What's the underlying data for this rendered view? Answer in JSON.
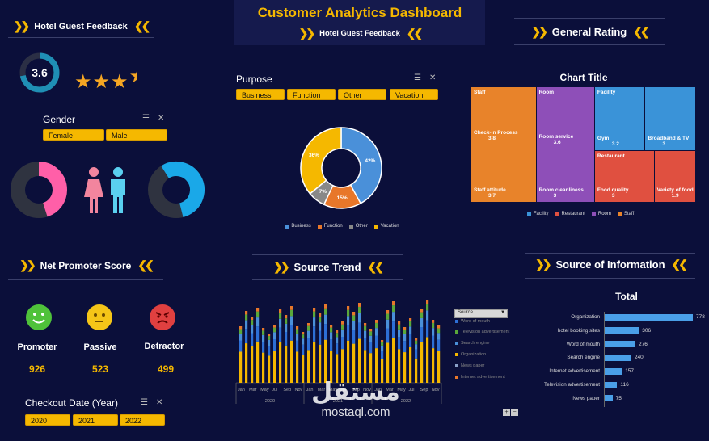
{
  "header": {
    "title": "Customer Analytics Dashboard",
    "subtitle": "Hotel Guest Feedback"
  },
  "left_panel": {
    "title": "Hotel Guest Feedback",
    "rating_value": "3.6",
    "rating_fraction": 0.72,
    "stars": 3.6,
    "gender": {
      "label": "Gender",
      "options": [
        "Female",
        "Male"
      ],
      "female_share": 0.45,
      "male_share": 0.55
    }
  },
  "purpose": {
    "label": "Purpose",
    "options": [
      "Business",
      "Function",
      "Other",
      "Vacation"
    ]
  },
  "general_rating": {
    "title": "General Rating"
  },
  "nps": {
    "title": "Net Promoter Score",
    "items": [
      {
        "label": "Promoter",
        "value": "926"
      },
      {
        "label": "Passive",
        "value": "523"
      },
      {
        "label": "Detractor",
        "value": "499"
      }
    ]
  },
  "checkout": {
    "label": "Checkout Date (Year)",
    "options": [
      "2020",
      "2021",
      "2022"
    ]
  },
  "source_trend": {
    "title": "Source Trend",
    "slicer_title": "Source",
    "legend": [
      "Word of mouth",
      "Television advertisement",
      "Search engine",
      "Organization",
      "News paper",
      "Internet advertisement"
    ],
    "month_labels": [
      "Jan",
      "Mar",
      "May",
      "Jul",
      "Sep",
      "Nov",
      "Jan",
      "Mar",
      "May",
      "Jul",
      "Sep",
      "Nov",
      "Jan",
      "Mar",
      "May",
      "Jul",
      "Sep",
      "Nov"
    ],
    "year_labels": [
      "2020",
      "2021",
      "2022"
    ]
  },
  "source_info": {
    "title": "Source of Information"
  },
  "colors": {
    "accent": "#f5b800",
    "background": "#0b0f3a",
    "business": "#4a90d9",
    "function": "#e8772a",
    "other": "#888888",
    "vacation": "#f5b800",
    "female": "#ff5fa8",
    "male": "#1aa8e8"
  },
  "watermark": "mostaql.com",
  "chart_data": [
    {
      "type": "pie",
      "name": "purpose",
      "categories": [
        "Business",
        "Function",
        "Other",
        "Vacation"
      ],
      "values": [
        42,
        15,
        7,
        36
      ],
      "labels": [
        "42%",
        "15%",
        "7%",
        "36%"
      ],
      "legend_placement": "bottom"
    },
    {
      "type": "heatmap",
      "subtype": "treemap",
      "title": "Chart Title",
      "items": [
        {
          "group": "Staff",
          "name": "Check-in Process",
          "value": 3.8,
          "label": "3.8"
        },
        {
          "group": "Staff",
          "name": "Staff attitude",
          "value": 3.7,
          "label": "3.7"
        },
        {
          "group": "Room",
          "name": "Room service",
          "value": 3.6,
          "label": "3.6"
        },
        {
          "group": "Room",
          "name": "Room cleanliness",
          "value": 3,
          "label": "3"
        },
        {
          "group": "Facility",
          "name": "Gym",
          "value": 3.2,
          "label": "3.2"
        },
        {
          "group": "Facility",
          "name": "Broadband & TV",
          "value": 3,
          "label": "3"
        },
        {
          "group": "Restaurant",
          "name": "Food quality",
          "value": 3,
          "label": "3"
        },
        {
          "group": "Restaurant",
          "name": "Variety of food",
          "value": 1.9,
          "label": "1.9"
        }
      ],
      "legend": [
        "Facility",
        "Restaurant",
        "Room",
        "Staff"
      ],
      "legend_placement": "bottom"
    },
    {
      "type": "bar",
      "orientation": "horizontal",
      "title": "Total",
      "categories": [
        "Organization",
        "hotel booking sites",
        "Word of mouth",
        "Search engine",
        "Internet advertisement",
        "Television advertisement",
        "News paper"
      ],
      "values": [
        778,
        306,
        276,
        240,
        157,
        116,
        75
      ]
    }
  ]
}
